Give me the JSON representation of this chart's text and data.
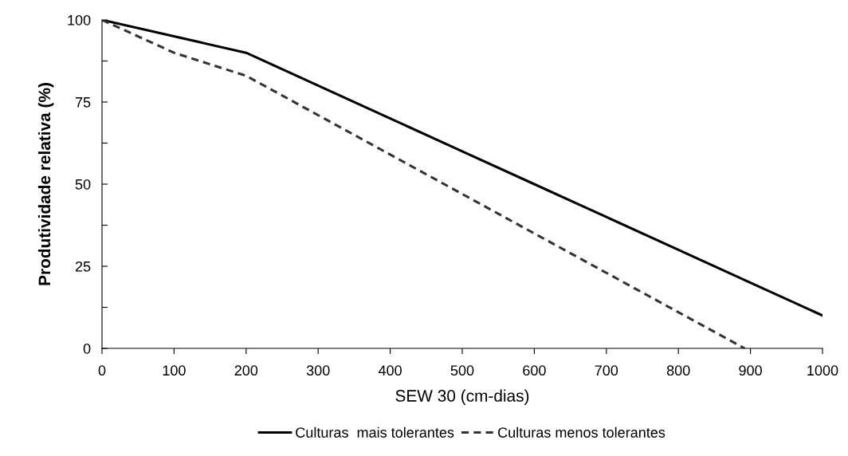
{
  "chart_data": {
    "type": "line",
    "xlabel": "SEW 30 (cm-dias)",
    "ylabel": "Produtividade relativa (%)",
    "xlim": [
      0,
      1000
    ],
    "ylim": [
      0,
      100
    ],
    "xticks": [
      0,
      100,
      200,
      300,
      400,
      500,
      600,
      700,
      800,
      900,
      1000
    ],
    "yticks": [
      0,
      {
        "value": 12.5,
        "label": null
      },
      25,
      {
        "value": 37.5,
        "label": null
      },
      50,
      {
        "value": 62.5,
        "label": null
      },
      75,
      {
        "value": 87.5,
        "label": null
      },
      100
    ],
    "grid": false,
    "legend": "bottom",
    "marker": "none",
    "series": [
      {
        "name": "Culturas  mais tolerantes",
        "color": "#000000",
        "line_style": "solid",
        "x": [
          0,
          200,
          300,
          400,
          500,
          600,
          700,
          800,
          900,
          1000
        ],
        "values": [
          100,
          90,
          80,
          70,
          60,
          50,
          40,
          30,
          20,
          10
        ]
      },
      {
        "name": "Culturas menos tolerantes",
        "color": "#333333",
        "line_style": "dashed",
        "x": [
          0,
          100,
          200,
          300,
          400,
          500,
          600,
          700,
          800,
          892
        ],
        "values": [
          100,
          90,
          83,
          71,
          59,
          47,
          35,
          23,
          11,
          0
        ]
      }
    ]
  }
}
